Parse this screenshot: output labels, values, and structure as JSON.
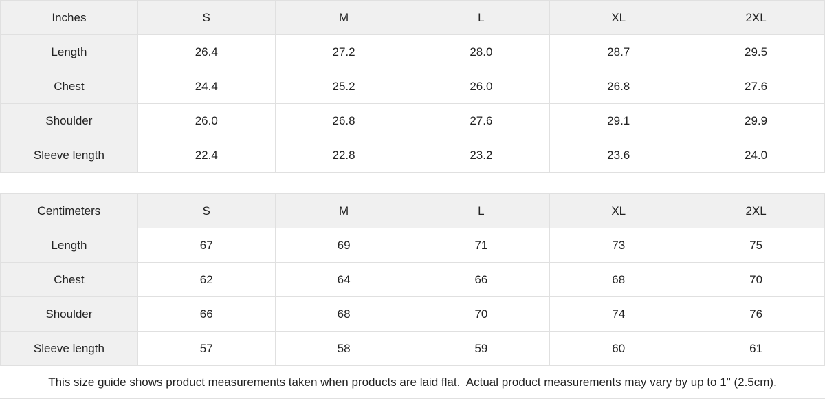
{
  "page": {
    "background": "#ffffff",
    "text_color": "#222222",
    "header_bg": "#f0f0f0",
    "border_color": "#e0e0e0"
  },
  "tables": [
    {
      "unit_label": "Inches",
      "sizes": [
        "S",
        "M",
        "L",
        "XL",
        "2XL"
      ],
      "rows": [
        {
          "label": "Length",
          "values": [
            "26.4",
            "27.2",
            "28.0",
            "28.7",
            "29.5"
          ]
        },
        {
          "label": "Chest",
          "values": [
            "24.4",
            "25.2",
            "26.0",
            "26.8",
            "27.6"
          ]
        },
        {
          "label": "Shoulder",
          "values": [
            "26.0",
            "26.8",
            "27.6",
            "29.1",
            "29.9"
          ]
        },
        {
          "label": "Sleeve length",
          "values": [
            "22.4",
            "22.8",
            "23.2",
            "23.6",
            "24.0"
          ]
        }
      ]
    },
    {
      "unit_label": "Centimeters",
      "sizes": [
        "S",
        "M",
        "L",
        "XL",
        "2XL"
      ],
      "rows": [
        {
          "label": "Length",
          "values": [
            "67",
            "69",
            "71",
            "73",
            "75"
          ]
        },
        {
          "label": "Chest",
          "values": [
            "62",
            "64",
            "66",
            "68",
            "70"
          ]
        },
        {
          "label": "Shoulder",
          "values": [
            "66",
            "68",
            "70",
            "74",
            "76"
          ]
        },
        {
          "label": "Sleeve length",
          "values": [
            "57",
            "58",
            "59",
            "60",
            "61"
          ]
        }
      ]
    }
  ],
  "footer": {
    "note": "This size guide shows product measurements taken when products are laid flat.  Actual product measurements may vary by up to 1\" (2.5cm)."
  }
}
